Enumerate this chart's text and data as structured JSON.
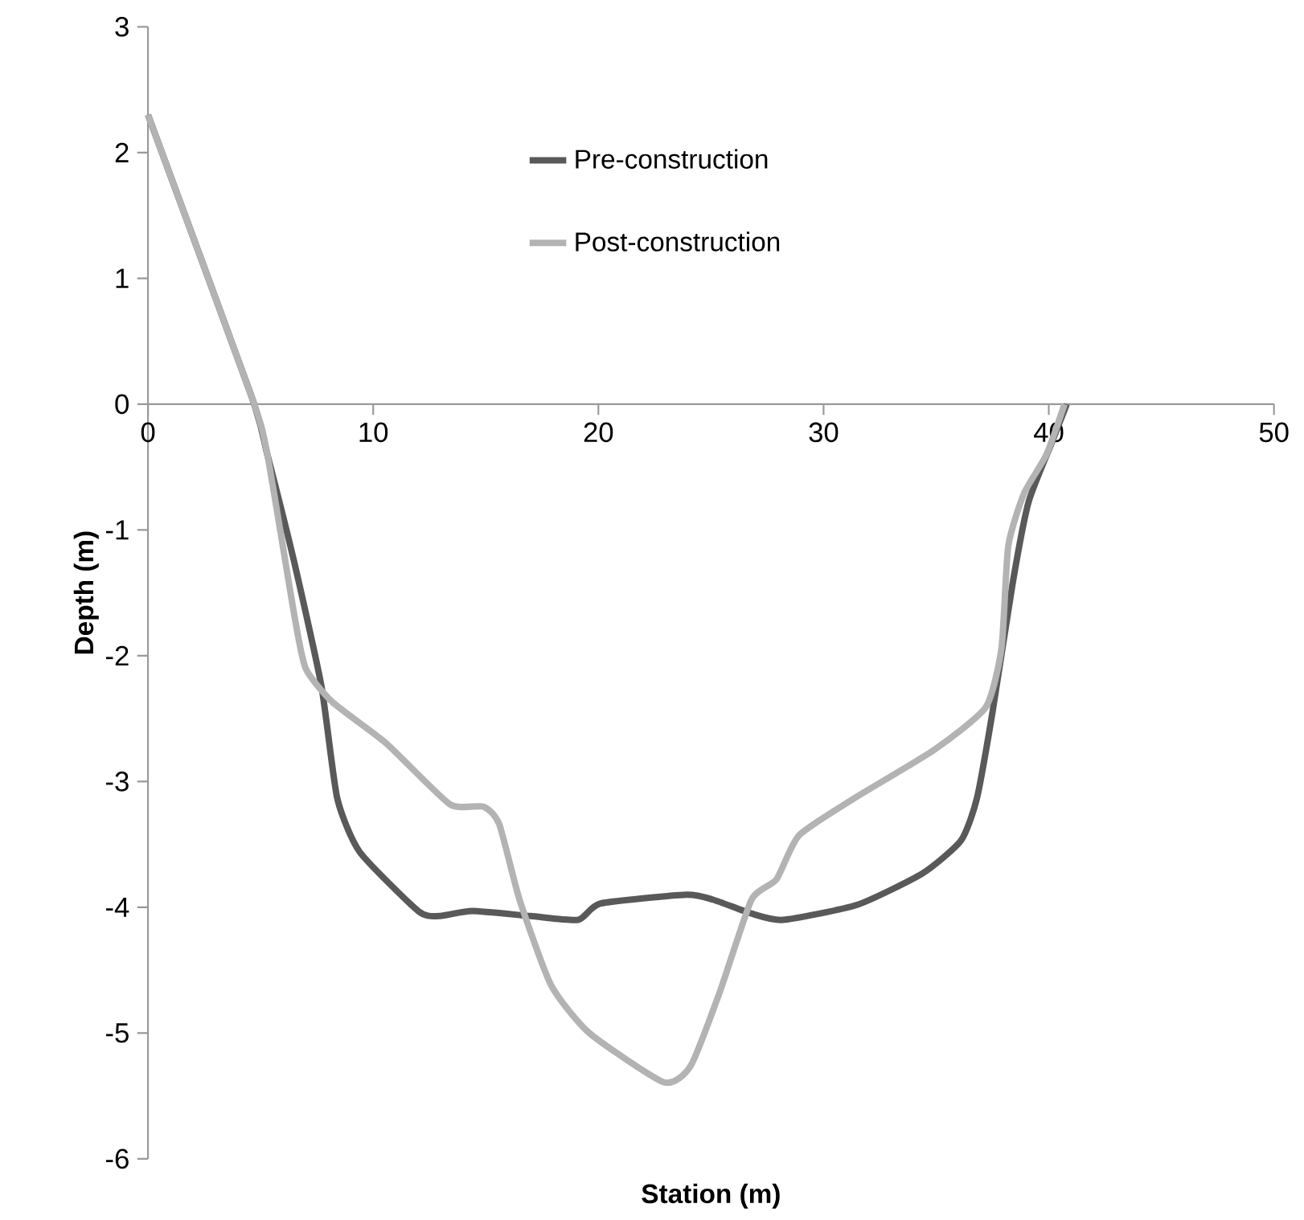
{
  "chart_data": {
    "type": "line",
    "xlabel": "Station (m)",
    "ylabel": "Depth (m)",
    "xlim": [
      0,
      50
    ],
    "ylim": [
      -6,
      3
    ],
    "xticks": [
      0,
      10,
      20,
      30,
      40,
      50
    ],
    "yticks": [
      -6,
      -5,
      -4,
      -3,
      -2,
      -1,
      0,
      1,
      2,
      3
    ],
    "legend": "top",
    "marker": "none",
    "line_style": "solid",
    "series": [
      {
        "name": "Pre-construction",
        "color": "#595959",
        "x": [
          0,
          4.6,
          5.3,
          6.5,
          7.7,
          8.4,
          9.4,
          12.0,
          12.9,
          14.4,
          17.0,
          19.1,
          20.1,
          23.9,
          25.1,
          26.8,
          28.2,
          31.5,
          34.4,
          36.1,
          36.8,
          37.5,
          38.4,
          39.1,
          40.1,
          40.8
        ],
        "values": [
          2.3,
          0.06,
          -0.4,
          -1.26,
          -2.24,
          -3.13,
          -3.56,
          -4.03,
          -4.07,
          -4.03,
          -4.07,
          -4.1,
          -3.97,
          -3.9,
          -3.94,
          -4.05,
          -4.1,
          -3.98,
          -3.73,
          -3.47,
          -3.14,
          -2.45,
          -1.42,
          -0.78,
          -0.32,
          0
        ]
      },
      {
        "name": "Post-construction",
        "color": "#b3b3b3",
        "x": [
          0,
          4.6,
          5.3,
          6.5,
          7.0,
          8.2,
          10.6,
          13.4,
          14.9,
          15.6,
          16.5,
          17.9,
          19.6,
          22.9,
          24.1,
          25.4,
          26.8,
          27.9,
          28.9,
          31.3,
          34.9,
          37.2,
          37.9,
          38.2,
          38.9,
          39.9,
          40.7
        ],
        "values": [
          2.3,
          0.06,
          -0.4,
          -1.68,
          -2.1,
          -2.37,
          -2.7,
          -3.18,
          -3.2,
          -3.34,
          -3.94,
          -4.62,
          -5.0,
          -5.39,
          -5.26,
          -4.67,
          -3.94,
          -3.78,
          -3.43,
          -3.14,
          -2.75,
          -2.41,
          -1.94,
          -1.13,
          -0.71,
          -0.4,
          0
        ]
      }
    ]
  }
}
